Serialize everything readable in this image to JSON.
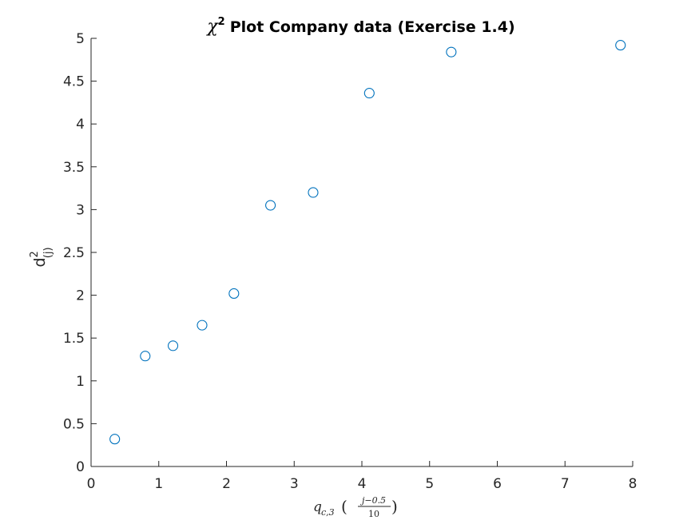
{
  "chart_data": {
    "type": "scatter",
    "title": {
      "chi_symbol": "χ",
      "superscript": "2",
      "text": "Plot Company data (Exercise 1.4)"
    },
    "ylabel": {
      "base": "d",
      "superscript": "2",
      "subscript": "(j)"
    },
    "xlabel": {
      "q": "q",
      "sub": "c,3",
      "open_paren": "(",
      "close_paren": ")",
      "numerator": "j−0.5",
      "denominator": "10"
    },
    "xlim": [
      0,
      8
    ],
    "ylim": [
      0,
      5
    ],
    "xticks": [
      "0",
      "1",
      "2",
      "3",
      "4",
      "5",
      "6",
      "7",
      "8"
    ],
    "yticks": [
      "0",
      "0.5",
      "1",
      "1.5",
      "2",
      "2.5",
      "3",
      "3.5",
      "4",
      "4.5",
      "5"
    ],
    "marker": "circle-open",
    "marker_color": "#0072BD",
    "axis_color": "#262626",
    "points": [
      {
        "x": 0.35,
        "y": 0.32
      },
      {
        "x": 0.8,
        "y": 1.29
      },
      {
        "x": 1.21,
        "y": 1.41
      },
      {
        "x": 1.64,
        "y": 1.65
      },
      {
        "x": 2.11,
        "y": 2.02
      },
      {
        "x": 2.65,
        "y": 3.05
      },
      {
        "x": 3.28,
        "y": 3.2
      },
      {
        "x": 4.11,
        "y": 4.36
      },
      {
        "x": 5.32,
        "y": 4.84
      },
      {
        "x": 7.82,
        "y": 4.92
      }
    ]
  }
}
